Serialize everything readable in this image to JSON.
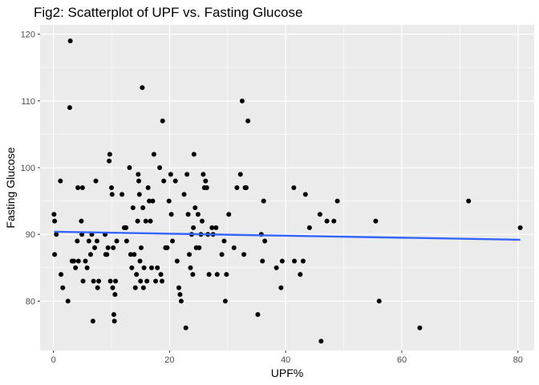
{
  "chart_data": {
    "type": "scatter",
    "title": "Fig2: Scatterplot of UPF vs. Fasting Glucose",
    "xlabel": "UPF%",
    "ylabel": "Fasting Glucose",
    "xlim": [
      -2.3,
      82.8
    ],
    "ylim": [
      72.6,
      121.4
    ],
    "x_ticks": [
      0,
      20,
      40,
      60,
      80
    ],
    "y_ticks": [
      80,
      90,
      100,
      110,
      120
    ],
    "grid": true,
    "panel_color": "#ebebeb",
    "grid_color": "#ffffff",
    "point_color": "#000000",
    "trend_line": {
      "color": "#3366ff",
      "x": [
        0.1,
        80.4
      ],
      "y": [
        90.4,
        89.2
      ]
    },
    "points": [
      [
        0.1,
        93
      ],
      [
        0.2,
        92
      ],
      [
        0.2,
        87
      ],
      [
        0.5,
        90
      ],
      [
        1.2,
        98
      ],
      [
        1.3,
        84
      ],
      [
        1.6,
        82
      ],
      [
        2.5,
        80
      ],
      [
        2.8,
        109
      ],
      [
        2.9,
        119
      ],
      [
        3.2,
        86
      ],
      [
        3.5,
        86
      ],
      [
        3.8,
        85
      ],
      [
        4.1,
        89
      ],
      [
        4.2,
        97
      ],
      [
        4.3,
        86
      ],
      [
        4.8,
        92
      ],
      [
        4.9,
        90
      ],
      [
        5.0,
        97
      ],
      [
        5.1,
        83
      ],
      [
        5.5,
        86
      ],
      [
        5.8,
        85
      ],
      [
        6.1,
        89
      ],
      [
        6.4,
        87
      ],
      [
        6.6,
        90
      ],
      [
        6.8,
        77
      ],
      [
        6.9,
        83
      ],
      [
        7.1,
        88
      ],
      [
        7.3,
        98
      ],
      [
        7.5,
        89
      ],
      [
        7.6,
        82
      ],
      [
        7.8,
        83
      ],
      [
        8.9,
        90
      ],
      [
        9.0,
        87
      ],
      [
        9.2,
        87
      ],
      [
        9.4,
        88
      ],
      [
        9.6,
        101
      ],
      [
        9.7,
        102
      ],
      [
        9.8,
        83
      ],
      [
        10.0,
        97
      ],
      [
        10.1,
        96
      ],
      [
        10.2,
        82
      ],
      [
        10.3,
        88
      ],
      [
        10.4,
        78
      ],
      [
        10.5,
        77
      ],
      [
        10.6,
        81
      ],
      [
        10.7,
        83
      ],
      [
        10.9,
        89
      ],
      [
        11.8,
        96
      ],
      [
        12.2,
        91
      ],
      [
        12.5,
        91
      ],
      [
        12.6,
        89
      ],
      [
        13.1,
        100
      ],
      [
        13.3,
        87
      ],
      [
        13.5,
        85
      ],
      [
        13.7,
        94
      ],
      [
        13.9,
        87
      ],
      [
        14.1,
        82
      ],
      [
        14.3,
        84
      ],
      [
        14.5,
        92
      ],
      [
        14.6,
        99
      ],
      [
        14.7,
        98
      ],
      [
        14.8,
        96
      ],
      [
        14.9,
        86
      ],
      [
        15.0,
        83
      ],
      [
        15.1,
        88
      ],
      [
        15.3,
        112
      ],
      [
        15.4,
        94
      ],
      [
        15.5,
        82
      ],
      [
        15.6,
        85
      ],
      [
        15.9,
        92
      ],
      [
        16.1,
        83
      ],
      [
        16.3,
        97
      ],
      [
        16.5,
        95
      ],
      [
        16.7,
        92
      ],
      [
        16.9,
        85
      ],
      [
        17.1,
        95
      ],
      [
        17.3,
        102
      ],
      [
        17.6,
        83
      ],
      [
        17.9,
        85
      ],
      [
        18.3,
        100
      ],
      [
        18.5,
        84
      ],
      [
        18.7,
        83
      ],
      [
        18.8,
        107
      ],
      [
        19.0,
        98
      ],
      [
        19.3,
        88
      ],
      [
        19.6,
        88
      ],
      [
        19.9,
        95
      ],
      [
        20.2,
        99
      ],
      [
        20.3,
        93
      ],
      [
        20.5,
        89
      ],
      [
        21.0,
        98
      ],
      [
        21.3,
        86
      ],
      [
        21.6,
        82
      ],
      [
        21.8,
        81
      ],
      [
        22.0,
        80
      ],
      [
        22.5,
        96
      ],
      [
        22.8,
        76
      ],
      [
        23.0,
        99
      ],
      [
        23.2,
        93
      ],
      [
        23.4,
        87
      ],
      [
        23.6,
        85
      ],
      [
        23.8,
        90
      ],
      [
        24.0,
        84
      ],
      [
        24.1,
        91
      ],
      [
        24.2,
        102
      ],
      [
        24.4,
        94
      ],
      [
        24.6,
        88
      ],
      [
        24.9,
        93
      ],
      [
        25.1,
        88
      ],
      [
        25.4,
        90
      ],
      [
        25.6,
        92
      ],
      [
        25.8,
        99
      ],
      [
        26.0,
        97
      ],
      [
        26.2,
        98
      ],
      [
        26.4,
        97
      ],
      [
        26.6,
        90
      ],
      [
        26.8,
        84
      ],
      [
        27.3,
        91
      ],
      [
        27.5,
        90
      ],
      [
        28.0,
        91
      ],
      [
        28.2,
        84
      ],
      [
        29.0,
        87
      ],
      [
        29.4,
        89
      ],
      [
        29.6,
        80
      ],
      [
        29.8,
        84
      ],
      [
        30.2,
        93
      ],
      [
        31.1,
        88
      ],
      [
        31.6,
        97
      ],
      [
        32.2,
        99
      ],
      [
        32.5,
        110
      ],
      [
        32.8,
        87
      ],
      [
        33.0,
        97
      ],
      [
        33.2,
        97
      ],
      [
        33.5,
        107
      ],
      [
        35.2,
        78
      ],
      [
        35.8,
        90
      ],
      [
        36.0,
        86
      ],
      [
        36.2,
        95
      ],
      [
        36.4,
        89
      ],
      [
        38.4,
        85
      ],
      [
        39.2,
        82
      ],
      [
        39.4,
        86
      ],
      [
        41.4,
        97
      ],
      [
        41.5,
        86
      ],
      [
        42.5,
        84
      ],
      [
        43.0,
        86
      ],
      [
        43.4,
        96
      ],
      [
        44.1,
        91
      ],
      [
        45.9,
        93
      ],
      [
        46.1,
        74
      ],
      [
        47.1,
        92
      ],
      [
        48.3,
        92
      ],
      [
        48.9,
        95
      ],
      [
        55.5,
        92
      ],
      [
        56.1,
        80
      ],
      [
        63.1,
        76
      ],
      [
        71.5,
        95
      ],
      [
        80.4,
        91
      ]
    ]
  }
}
